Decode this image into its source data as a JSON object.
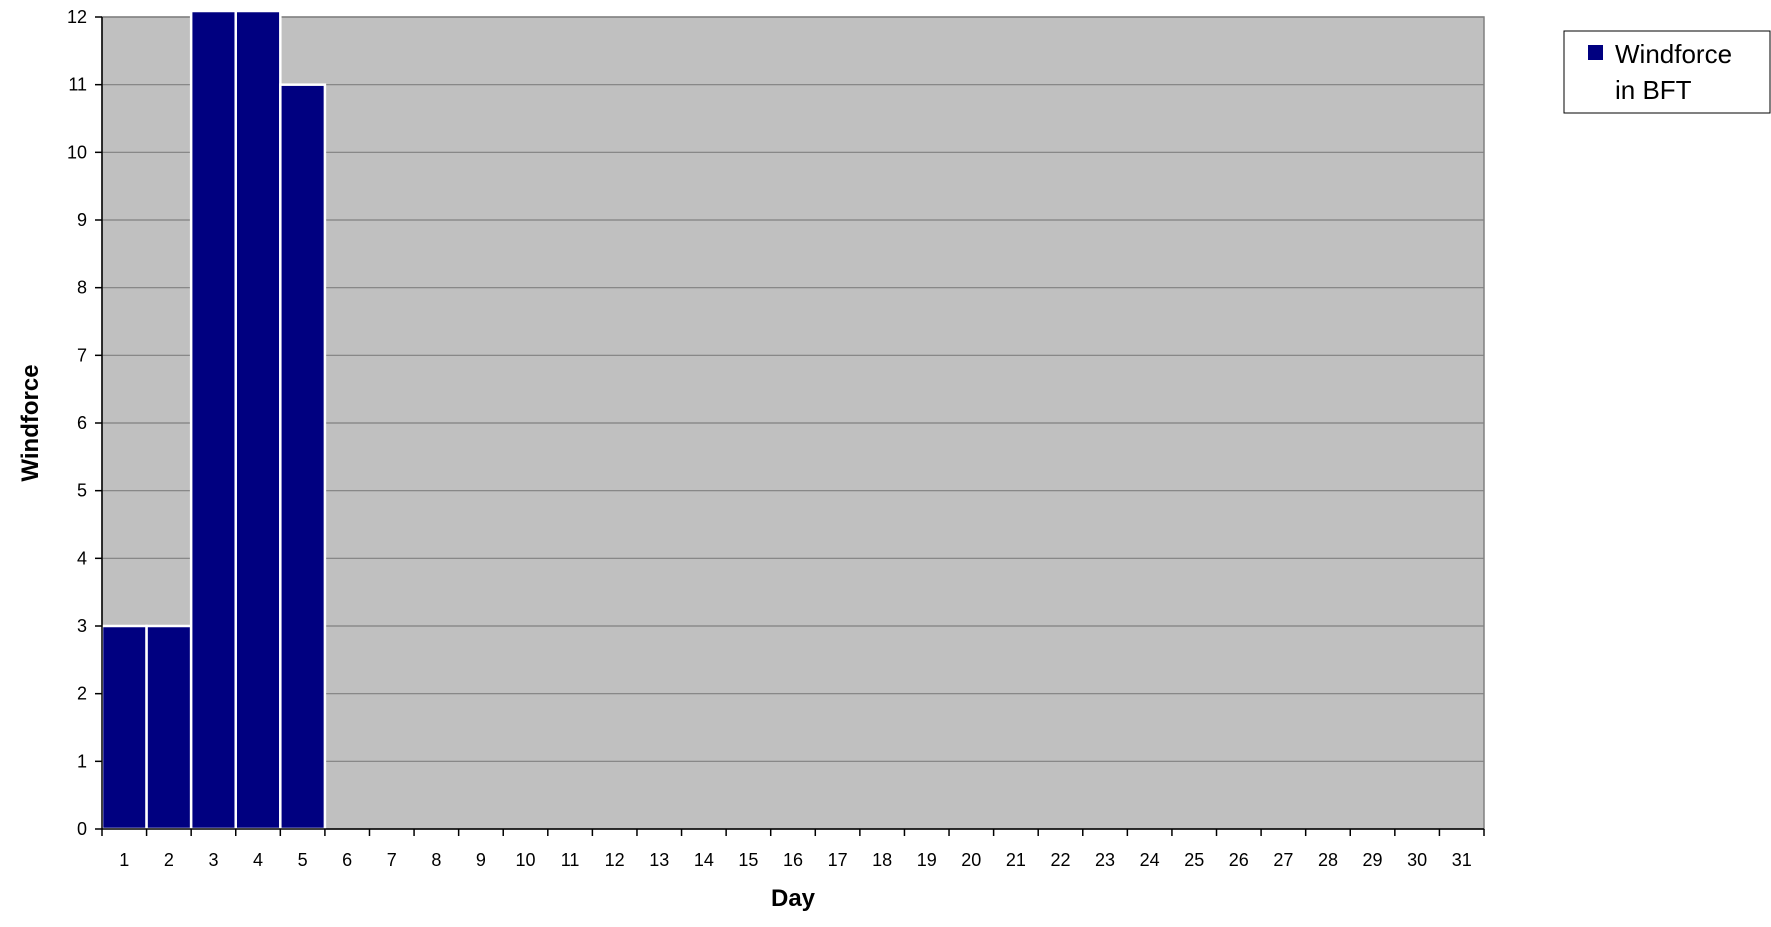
{
  "chart_data": {
    "type": "bar",
    "title": "",
    "xlabel": "Day",
    "ylabel": "Windforce",
    "categories": [
      "1",
      "2",
      "3",
      "4",
      "5",
      "6",
      "7",
      "8",
      "9",
      "10",
      "11",
      "12",
      "13",
      "14",
      "15",
      "16",
      "17",
      "18",
      "19",
      "20",
      "21",
      "22",
      "23",
      "24",
      "25",
      "26",
      "27",
      "28",
      "29",
      "30",
      "31"
    ],
    "series": [
      {
        "name": "Windforce in BFT",
        "values": [
          3,
          3,
          12,
          12,
          11,
          null,
          null,
          null,
          null,
          null,
          null,
          null,
          null,
          null,
          null,
          null,
          null,
          null,
          null,
          null,
          null,
          null,
          null,
          null,
          null,
          null,
          null,
          null,
          null,
          null,
          null
        ]
      }
    ],
    "ylim": [
      0,
      12
    ],
    "yticks": [
      0,
      1,
      2,
      3,
      4,
      5,
      6,
      7,
      8,
      9,
      10,
      11,
      12
    ],
    "grid": true,
    "legend_position": "top-right",
    "legend_lines": [
      "Windforce",
      "in BFT"
    ],
    "colors": {
      "bar": "#000080",
      "bar_edge": "#ffffff",
      "plot_background": "#c0c0c0",
      "gridline": "#808080",
      "axis": "#000000"
    }
  }
}
